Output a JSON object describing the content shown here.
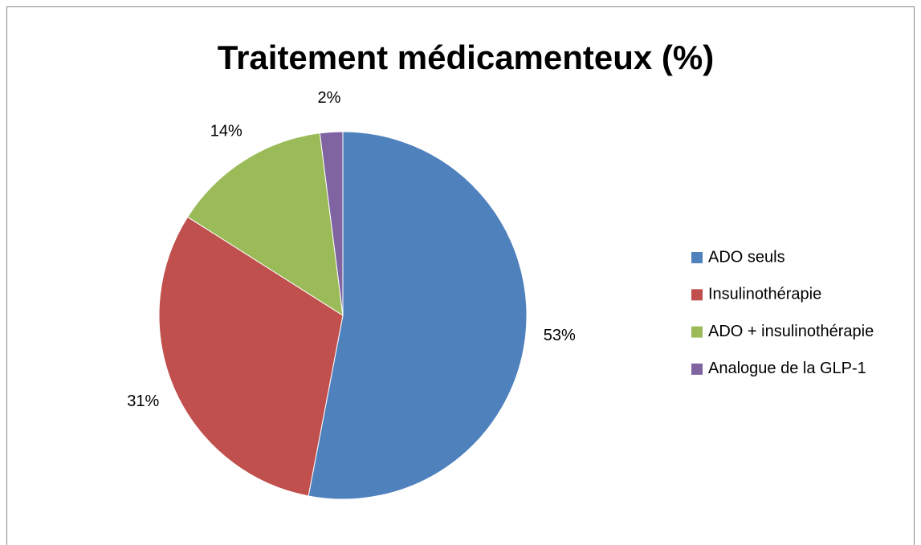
{
  "chart_data": {
    "type": "pie",
    "title": "Traitement médicamenteux (%)",
    "categories": [
      "ADO seuls",
      "Insulinothérapie",
      "ADO + insulinothérapie",
      "Analogue de la GLP-1"
    ],
    "values": [
      53,
      31,
      14,
      2
    ],
    "value_labels": [
      "53%",
      "31%",
      "14%",
      "2%"
    ],
    "colors": [
      "#4f81bd",
      "#c0504d",
      "#9bbb59",
      "#8064a2"
    ],
    "legend": "right"
  }
}
